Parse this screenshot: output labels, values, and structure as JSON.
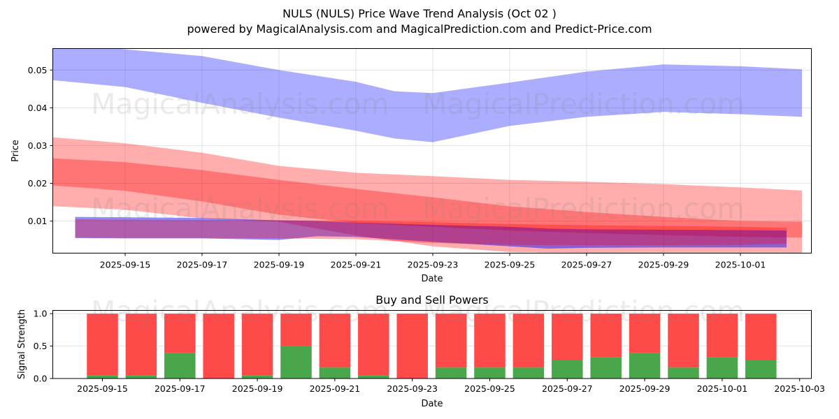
{
  "header": {
    "title": "NULS (NULS) Price Wave Trend Analysis (Oct 02 )",
    "subtitle": "powered by MagicalAnalysis.com and MagicalPrediction.com and Predict-Price.com"
  },
  "watermarks": [
    "MagicalAnalysis.com",
    "MagicalPrediction.com"
  ],
  "chart_data": [
    {
      "type": "area",
      "title": "",
      "xlabel": "Date",
      "ylabel": "Price",
      "xlim": [
        "2025-09-13.1",
        "2025-10-02.84"
      ],
      "ylim": [
        0.0015,
        0.0557
      ],
      "grid": true,
      "x_ticks": [
        "2025-09-15",
        "2025-09-17",
        "2025-09-19",
        "2025-09-21",
        "2025-09-23",
        "2025-09-25",
        "2025-09-27",
        "2025-09-29",
        "2025-10-01"
      ],
      "y_ticks": [
        "0.01",
        "0.02",
        "0.03",
        "0.04",
        "0.05"
      ],
      "y_tick_values": [
        0.01,
        0.02,
        0.03,
        0.04,
        0.05
      ],
      "series": [
        {
          "name": "upper-blue-band",
          "color": "#0000ff",
          "opacity": 0.32,
          "x": [
            -2.7,
            -2.6,
            0,
            2,
            4,
            6,
            7,
            8,
            10,
            12,
            14,
            16,
            17.6
          ],
          "upper": [
            0.048,
            0.058,
            0.0555,
            0.0537,
            0.05,
            0.0469,
            0.0444,
            0.0439,
            0.0467,
            0.0496,
            0.0515,
            0.051,
            0.0502
          ],
          "lower": [
            0.048,
            0.048,
            0.0455,
            0.0413,
            0.0374,
            0.0339,
            0.0319,
            0.0309,
            0.0352,
            0.0376,
            0.0389,
            0.0383,
            0.0376
          ]
        },
        {
          "name": "outer-red-band",
          "color": "#ff0000",
          "opacity": 0.32,
          "x": [
            -2.6,
            0,
            2,
            4,
            6,
            8,
            10,
            12,
            14,
            16,
            17.6
          ],
          "upper": [
            0.0328,
            0.0306,
            0.0281,
            0.0246,
            0.0228,
            0.0219,
            0.0209,
            0.0204,
            0.0198,
            0.0189,
            0.0181
          ],
          "lower": [
            0.0143,
            0.013,
            0.0107,
            0.0098,
            0.0062,
            0.0033,
            0.0018,
            0.0016,
            0.0015,
            0.0015,
            0.0015
          ]
        },
        {
          "name": "inner-red-band",
          "color": "#ff0000",
          "opacity": 0.32,
          "x": [
            -2.6,
            0,
            2,
            4,
            6,
            8,
            10,
            12,
            14,
            16,
            17.6
          ],
          "upper": [
            0.027,
            0.0256,
            0.0235,
            0.0209,
            0.0185,
            0.0163,
            0.0139,
            0.0124,
            0.0111,
            0.01,
            0.0098
          ],
          "lower": [
            0.02,
            0.018,
            0.0152,
            0.0117,
            0.0095,
            0.0085,
            0.0075,
            0.0068,
            0.0063,
            0.0058,
            0.0056
          ]
        },
        {
          "name": "lower-blue-band",
          "color": "#0000ff",
          "opacity": 0.45,
          "x": [
            -1.3,
            0,
            2,
            4,
            5,
            6,
            8,
            10,
            11,
            12,
            14,
            16,
            17.2
          ],
          "upper": [
            0.0111,
            0.011,
            0.0108,
            0.0102,
            0.01,
            0.0096,
            0.009,
            0.0085,
            0.008,
            0.0078,
            0.0077,
            0.0076,
            0.0075
          ],
          "lower": [
            0.0055,
            0.0054,
            0.0054,
            0.005,
            0.006,
            0.0058,
            0.0045,
            0.0033,
            0.0027,
            0.0029,
            0.003,
            0.003,
            0.003
          ]
        },
        {
          "name": "lower-red-band",
          "color": "#ff0000",
          "opacity": 0.32,
          "x": [
            -1.3,
            0,
            2,
            4,
            6,
            8,
            10,
            12,
            14,
            16,
            17.2
          ],
          "upper": [
            0.0105,
            0.0104,
            0.0103,
            0.0102,
            0.0101,
            0.0097,
            0.0092,
            0.0089,
            0.0087,
            0.0085,
            0.0082
          ],
          "lower": [
            0.0056,
            0.0055,
            0.0055,
            0.0054,
            0.0052,
            0.0042,
            0.0037,
            0.0036,
            0.0036,
            0.0037,
            0.004
          ]
        }
      ],
      "x_origin_date": "2025-09-15"
    },
    {
      "type": "bar",
      "title": "Buy and Sell Powers",
      "xlabel": "Date",
      "ylabel": "Signal Strength",
      "ylim": [
        0,
        1.05
      ],
      "grid": true,
      "x_ticks": [
        "2025-09-15",
        "2025-09-17",
        "2025-09-19",
        "2025-09-21",
        "2025-09-23",
        "2025-09-25",
        "2025-09-27",
        "2025-09-29",
        "2025-10-01",
        "2025-10-03"
      ],
      "y_ticks": [
        "0.0",
        "0.5",
        "1.0"
      ],
      "y_tick_values": [
        0,
        0.5,
        1.0
      ],
      "categories": [
        "2025-09-15",
        "2025-09-16",
        "2025-09-17",
        "2025-09-18",
        "2025-09-19",
        "2025-09-20",
        "2025-09-21",
        "2025-09-22",
        "2025-09-23",
        "2025-09-24",
        "2025-09-25",
        "2025-09-26",
        "2025-09-27",
        "2025-09-28",
        "2025-09-29",
        "2025-09-30",
        "2025-10-01",
        "2025-10-02"
      ],
      "series": [
        {
          "name": "Buy",
          "color": "#4aa64a",
          "values": [
            0.05,
            0.05,
            0.39,
            0.0,
            0.05,
            0.5,
            0.17,
            0.05,
            0.0,
            0.17,
            0.17,
            0.17,
            0.28,
            0.33,
            0.39,
            0.17,
            0.33,
            0.28
          ]
        },
        {
          "name": "Sell",
          "color": "#ff4a4a",
          "values": [
            0.95,
            0.95,
            0.61,
            1.0,
            0.95,
            0.5,
            0.83,
            0.95,
            1.0,
            0.83,
            0.83,
            0.83,
            0.72,
            0.67,
            0.61,
            0.83,
            0.67,
            0.72
          ]
        }
      ]
    }
  ]
}
